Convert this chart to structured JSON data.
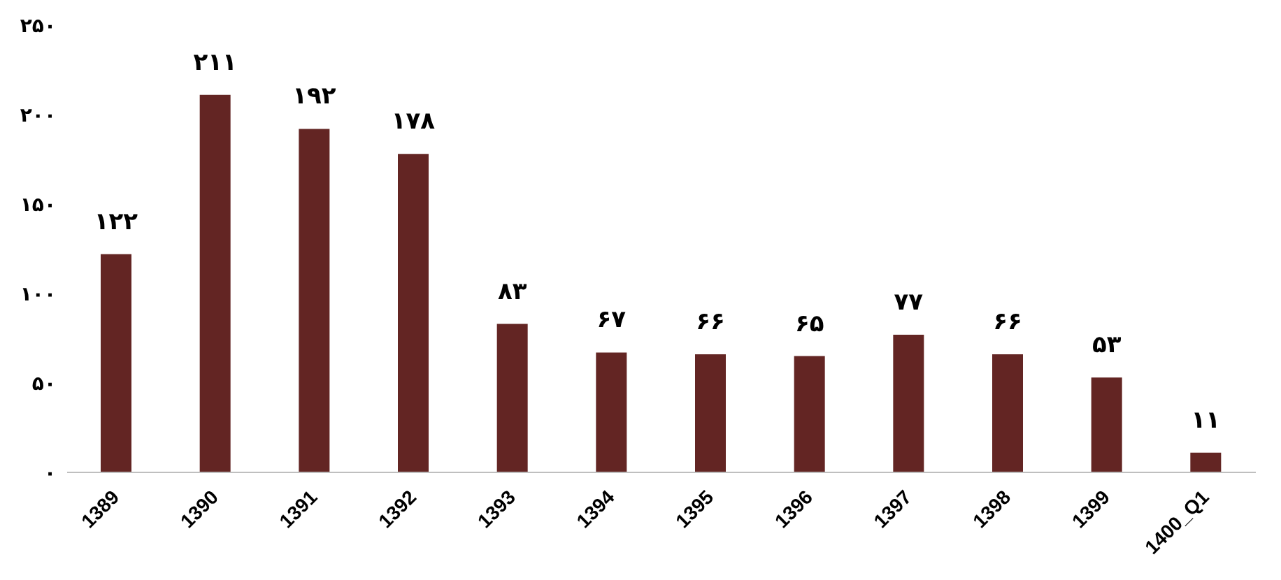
{
  "chart_data": {
    "type": "bar",
    "categories": [
      "1389",
      "1390",
      "1391",
      "1392",
      "1393",
      "1394",
      "1395",
      "1396",
      "1397",
      "1398",
      "1399",
      "1400_Q1"
    ],
    "values": [
      122,
      211,
      192,
      178,
      83,
      67,
      66,
      65,
      77,
      66,
      53,
      11
    ],
    "color": "#632523",
    "value_labels": [
      "۱۲۲",
      "۲۱۱",
      "۱۹۲",
      "۱۷۸",
      "۸۳",
      "۶۷",
      "۶۶",
      "۶۵",
      "۷۷",
      "۶۶",
      "۵۳",
      "۱۱"
    ],
    "ylim": [
      0,
      250
    ],
    "yticks": [
      {
        "value": 0,
        "label": "۰"
      },
      {
        "value": 50,
        "label": "۵۰"
      },
      {
        "value": 100,
        "label": "۱۰۰"
      },
      {
        "value": 150,
        "label": "۱۵۰"
      },
      {
        "value": 200,
        "label": "۲۰۰"
      },
      {
        "value": 250,
        "label": "۲۵۰"
      }
    ],
    "grid": false,
    "legend": false
  }
}
